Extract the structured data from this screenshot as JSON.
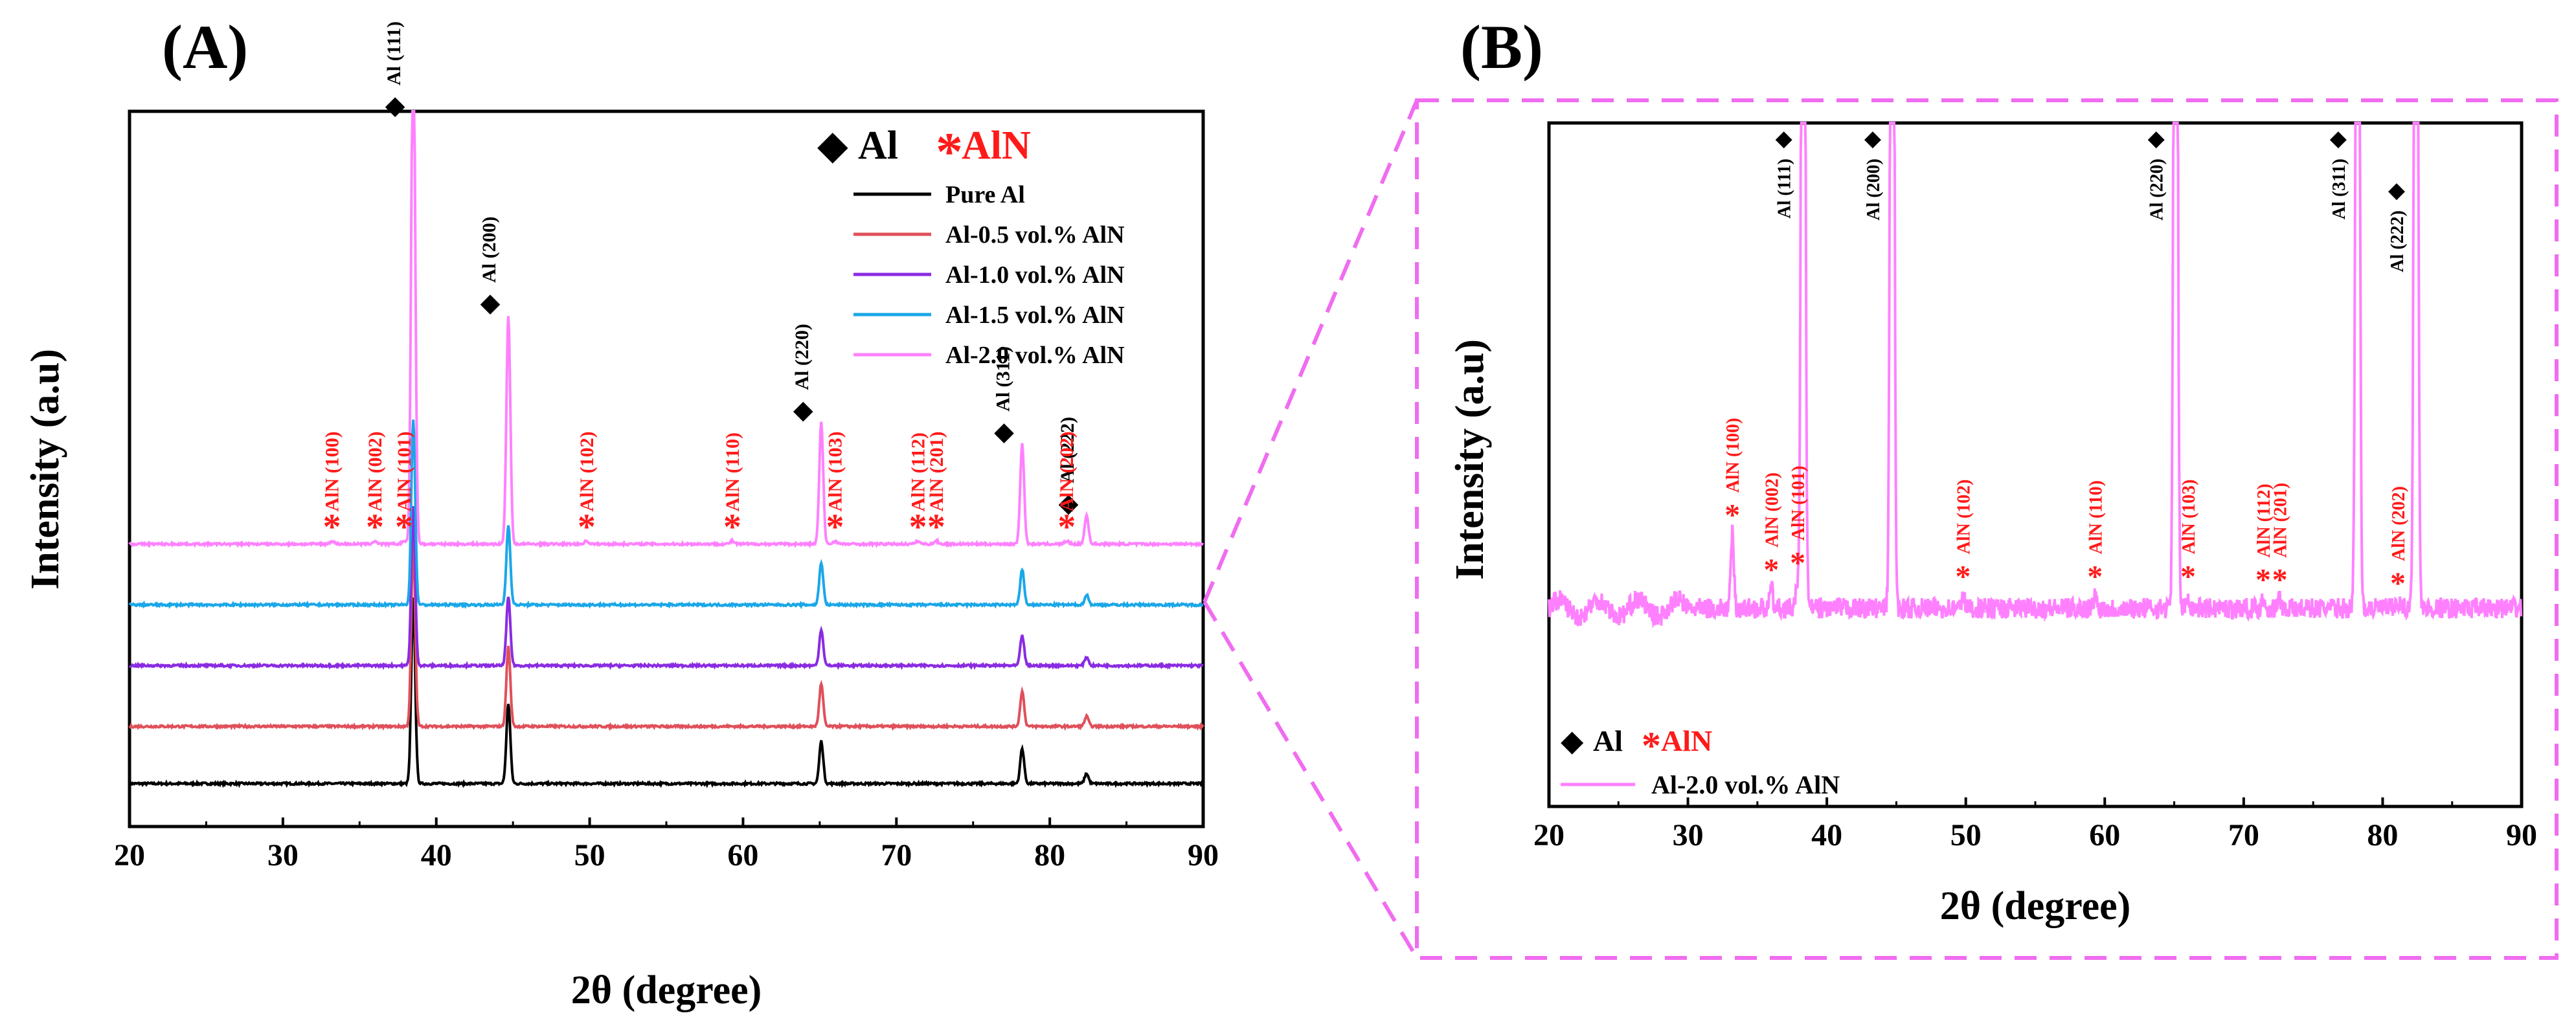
{
  "chart_data": [
    {
      "type": "line",
      "panel_label": "(A)",
      "xlabel": "2θ (degree)",
      "ylabel": "Intensity (a.u)",
      "xlim": [
        20,
        90
      ],
      "xticks": [
        20,
        30,
        40,
        50,
        60,
        70,
        80,
        90
      ],
      "legend_position": "top-right",
      "legend_header": {
        "al_symbol": "◆",
        "al": "Al",
        "aln_symbol": "*",
        "aln": "AlN"
      },
      "series": [
        {
          "name": "Pure Al",
          "color": "#000000",
          "baseline": 0.06,
          "peak_scale": 0.35
        },
        {
          "name": "Al-0.5 vol.% AlN",
          "color": "#e0505a",
          "baseline": 0.14,
          "peak_scale": 0.35
        },
        {
          "name": "Al-1.0 vol.% AlN",
          "color": "#8a2be2",
          "baseline": 0.225,
          "peak_scale": 0.3
        },
        {
          "name": "Al-1.5 vol.% AlN",
          "color": "#1aa7e8",
          "baseline": 0.31,
          "peak_scale": 0.35
        },
        {
          "name": "Al-2.0 vol.% AlN",
          "color": "#ff80ff",
          "baseline": 0.395,
          "peak_scale": 1.0
        }
      ],
      "al_peaks": [
        {
          "pos": 38.5,
          "label": "Al (111)",
          "height": 0.74
        },
        {
          "pos": 44.7,
          "label": "Al (200)",
          "height": 0.32
        },
        {
          "pos": 65.1,
          "label": "Al (220)",
          "height": 0.17
        },
        {
          "pos": 78.2,
          "label": "Al (311)",
          "height": 0.14
        },
        {
          "pos": 82.4,
          "label": "Al (222)",
          "height": 0.04
        }
      ],
      "aln_peaks": [
        {
          "pos": 33.2,
          "label": "AlN (100)"
        },
        {
          "pos": 36.0,
          "label": "AlN (002)"
        },
        {
          "pos": 37.9,
          "label": "AlN (101)"
        },
        {
          "pos": 49.8,
          "label": "AlN (102)"
        },
        {
          "pos": 59.3,
          "label": "AlN (110)"
        },
        {
          "pos": 66.0,
          "label": "AlN (103)"
        },
        {
          "pos": 71.4,
          "label": "AlN (112)"
        },
        {
          "pos": 72.6,
          "label": "AlN (201)"
        },
        {
          "pos": 81.1,
          "label": "AlN (202)"
        }
      ]
    },
    {
      "type": "line",
      "panel_label": "(B)",
      "xlabel": "2θ (degree)",
      "ylabel": "Intensity (a.u)",
      "xlim": [
        20,
        90
      ],
      "xticks": [
        20,
        30,
        40,
        50,
        60,
        70,
        80,
        90
      ],
      "legend_position": "bottom-left",
      "legend_header": {
        "al_symbol": "◆",
        "al": "Al",
        "aln_symbol": "*",
        "aln": "AlN"
      },
      "series": [
        {
          "name": "Al-2.0 vol.% AlN",
          "color": "#ff80ff",
          "baseline": 0.29
        }
      ],
      "al_peaks": [
        {
          "pos": 38.3,
          "label": "Al (111)"
        },
        {
          "pos": 44.7,
          "label": "Al (200)"
        },
        {
          "pos": 65.1,
          "label": "Al (220)"
        },
        {
          "pos": 78.2,
          "label": "Al (311)"
        },
        {
          "pos": 82.4,
          "label": "Al (222)"
        }
      ],
      "aln_peaks": [
        {
          "pos": 33.2,
          "label": "AlN (100)",
          "height": 0.11
        },
        {
          "pos": 36.0,
          "label": "AlN (002)",
          "height": 0.03
        },
        {
          "pos": 37.9,
          "label": "AlN (101)",
          "height": 0.04
        },
        {
          "pos": 49.8,
          "label": "AlN (102)",
          "height": 0.02
        },
        {
          "pos": 59.3,
          "label": "AlN (110)",
          "height": 0.02
        },
        {
          "pos": 66.0,
          "label": "AlN (103)",
          "height": 0.02
        },
        {
          "pos": 71.4,
          "label": "AlN (112)",
          "height": 0.015
        },
        {
          "pos": 72.6,
          "label": "AlN (201)",
          "height": 0.015
        },
        {
          "pos": 81.1,
          "label": "AlN (202)",
          "height": 0.01
        }
      ]
    }
  ],
  "colors": {
    "aln_red": "#ff1a1a",
    "zoom_box": "#f06cf0",
    "axis": "#000000"
  }
}
